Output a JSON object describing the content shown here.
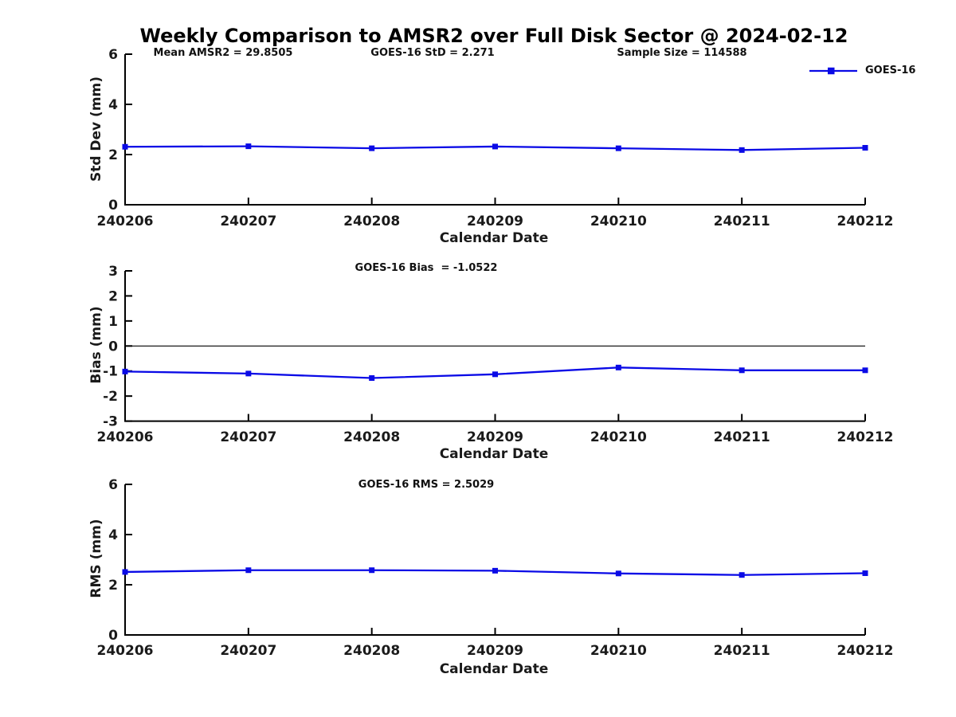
{
  "title": "Weekly Comparison to AMSR2 over Full Disk Sector @ 2024-02-12",
  "legend": {
    "label": "GOES-16"
  },
  "colors": {
    "line": "#0a0ae6",
    "axis": "#000000",
    "zero_line": "#000000",
    "text": "#1a1a1a"
  },
  "chart_data": [
    {
      "type": "line",
      "annotations": [
        "Mean AMSR2 = 29.8505",
        "GOES-16 StD = 2.271",
        "Sample Size = 114588"
      ],
      "categories": [
        "240206",
        "240207",
        "240208",
        "240209",
        "240210",
        "240211",
        "240212"
      ],
      "series": [
        {
          "name": "GOES-16",
          "values": [
            2.31,
            2.33,
            2.25,
            2.32,
            2.25,
            2.18,
            2.27
          ]
        }
      ],
      "marker": "square",
      "xlabel": "Calendar Date",
      "ylabel": "Std Dev (mm)",
      "ylim": [
        0,
        6
      ],
      "yticks": [
        0,
        2,
        4,
        6
      ],
      "grid": false,
      "zero_line": false,
      "legend_position": "top-right"
    },
    {
      "type": "line",
      "annotations": [
        "GOES-16 Bias  = -1.0522"
      ],
      "categories": [
        "240206",
        "240207",
        "240208",
        "240209",
        "240210",
        "240211",
        "240212"
      ],
      "series": [
        {
          "name": "GOES-16",
          "values": [
            -1.02,
            -1.1,
            -1.28,
            -1.13,
            -0.86,
            -0.97,
            -0.97
          ]
        }
      ],
      "marker": "square",
      "xlabel": "Calendar Date",
      "ylabel": "Bias (mm)",
      "ylim": [
        -3,
        3
      ],
      "yticks": [
        -3,
        -2,
        -1,
        0,
        1,
        2,
        3
      ],
      "grid": false,
      "zero_line": true,
      "legend_position": "none"
    },
    {
      "type": "line",
      "annotations": [
        "GOES-16 RMS = 2.5029"
      ],
      "categories": [
        "240206",
        "240207",
        "240208",
        "240209",
        "240210",
        "240211",
        "240212"
      ],
      "series": [
        {
          "name": "GOES-16",
          "values": [
            2.51,
            2.58,
            2.58,
            2.56,
            2.45,
            2.39,
            2.46
          ]
        }
      ],
      "marker": "square",
      "xlabel": "Calendar Date",
      "ylabel": "RMS (mm)",
      "ylim": [
        0,
        6
      ],
      "yticks": [
        0,
        2,
        4,
        6
      ],
      "grid": false,
      "zero_line": false,
      "legend_position": "none"
    }
  ]
}
